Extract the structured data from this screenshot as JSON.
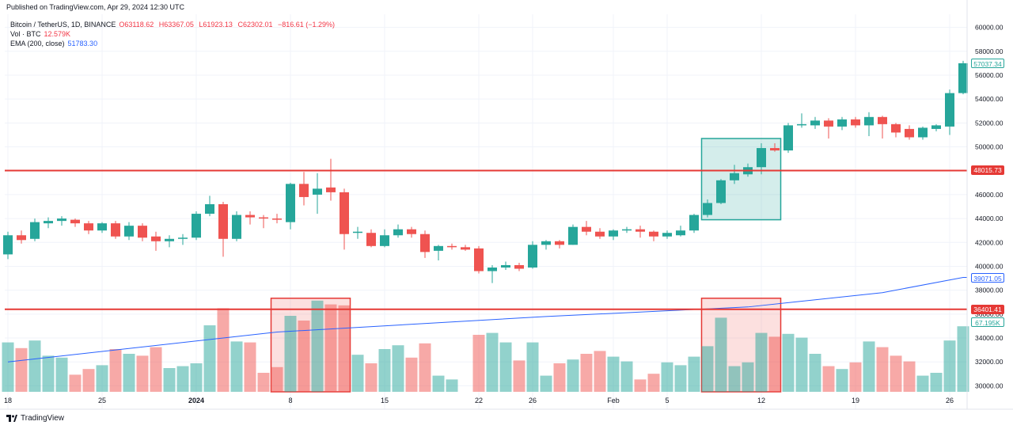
{
  "header": {
    "published": "Published on TradingView.com, Apr 29, 2024 12:30 UTC",
    "symbol": "Bitcoin / TetherUS, 1D, BINANCE",
    "ohlc": {
      "o_label": "O",
      "o": "63118.62",
      "h_label": "H",
      "h": "63367.05",
      "l_label": "L",
      "l": "61923.13",
      "c_label": "C",
      "c": "62302.01",
      "change": "−816.61 (−1.29%)"
    },
    "vol_label": "Vol · BTC",
    "vol_value": "12.579K",
    "ema_label": "EMA (200, close)",
    "ema_value": "51783.30"
  },
  "footer": {
    "brand": "TradingView"
  },
  "colors": {
    "up": "#26a69a",
    "down": "#ef5350",
    "ema": "#2962ff",
    "hline": "#e53935"
  },
  "chart_data": {
    "type": "candlestick",
    "title": "Bitcoin / TetherUS, 1D, BINANCE",
    "y_ticks": [
      "60000.00",
      "58000.00",
      "56000.00",
      "54000.00",
      "52000.00",
      "50000.00",
      "48000.00",
      "46000.00",
      "44000.00",
      "42000.00",
      "40000.00",
      "38000.00",
      "36000.00",
      "34000.00",
      "32000.00",
      "30000.00"
    ],
    "ylim": [
      29300,
      61100
    ],
    "x_ticks": [
      {
        "label": "18",
        "index": 0
      },
      {
        "label": "25",
        "index": 7
      },
      {
        "label": "2024",
        "index": 14
      },
      {
        "label": "8",
        "index": 21
      },
      {
        "label": "15",
        "index": 28
      },
      {
        "label": "22",
        "index": 35
      },
      {
        "label": "26",
        "index": 39
      },
      {
        "label": "Feb",
        "index": 45
      },
      {
        "label": "5",
        "index": 49
      },
      {
        "label": "12",
        "index": 56
      },
      {
        "label": "19",
        "index": 63
      },
      {
        "label": "26",
        "index": 70
      }
    ],
    "candles": [
      {
        "o": 41000,
        "h": 42900,
        "l": 40600,
        "c": 42600
      },
      {
        "o": 42600,
        "h": 43000,
        "l": 41900,
        "c": 42200
      },
      {
        "o": 42300,
        "h": 44000,
        "l": 42100,
        "c": 43700
      },
      {
        "o": 43600,
        "h": 44100,
        "l": 43200,
        "c": 43800
      },
      {
        "o": 43800,
        "h": 44200,
        "l": 43400,
        "c": 44000
      },
      {
        "o": 43900,
        "h": 44000,
        "l": 43300,
        "c": 43600
      },
      {
        "o": 43600,
        "h": 43800,
        "l": 42700,
        "c": 43000
      },
      {
        "o": 43000,
        "h": 43700,
        "l": 42800,
        "c": 43600
      },
      {
        "o": 43600,
        "h": 43800,
        "l": 42300,
        "c": 42500
      },
      {
        "o": 42500,
        "h": 43700,
        "l": 42200,
        "c": 43400
      },
      {
        "o": 43400,
        "h": 43600,
        "l": 42100,
        "c": 42400
      },
      {
        "o": 42500,
        "h": 42900,
        "l": 41300,
        "c": 42100
      },
      {
        "o": 42100,
        "h": 42600,
        "l": 41600,
        "c": 42300
      },
      {
        "o": 42300,
        "h": 42700,
        "l": 41800,
        "c": 42400
      },
      {
        "o": 42400,
        "h": 44600,
        "l": 42200,
        "c": 44400
      },
      {
        "o": 44400,
        "h": 45900,
        "l": 44200,
        "c": 45200
      },
      {
        "o": 45200,
        "h": 45400,
        "l": 40800,
        "c": 42300
      },
      {
        "o": 42300,
        "h": 44600,
        "l": 42100,
        "c": 44300
      },
      {
        "o": 44300,
        "h": 44600,
        "l": 43500,
        "c": 44100
      },
      {
        "o": 44100,
        "h": 44300,
        "l": 43200,
        "c": 44000
      },
      {
        "o": 44000,
        "h": 44400,
        "l": 43600,
        "c": 43900
      },
      {
        "o": 43700,
        "h": 47000,
        "l": 43100,
        "c": 46900
      },
      {
        "o": 46900,
        "h": 47900,
        "l": 45100,
        "c": 45800
      },
      {
        "o": 46000,
        "h": 47800,
        "l": 44400,
        "c": 46500
      },
      {
        "o": 46600,
        "h": 49000,
        "l": 45500,
        "c": 46200
      },
      {
        "o": 46200,
        "h": 46500,
        "l": 41400,
        "c": 42700
      },
      {
        "o": 42800,
        "h": 43300,
        "l": 42300,
        "c": 42900
      },
      {
        "o": 42800,
        "h": 43100,
        "l": 41600,
        "c": 41700
      },
      {
        "o": 41700,
        "h": 43100,
        "l": 41600,
        "c": 42600
      },
      {
        "o": 42600,
        "h": 43500,
        "l": 42400,
        "c": 43100
      },
      {
        "o": 43100,
        "h": 43300,
        "l": 42400,
        "c": 42700
      },
      {
        "o": 42700,
        "h": 43000,
        "l": 40700,
        "c": 41200
      },
      {
        "o": 41300,
        "h": 41800,
        "l": 40500,
        "c": 41700
      },
      {
        "o": 41700,
        "h": 41900,
        "l": 41400,
        "c": 41600
      },
      {
        "o": 41600,
        "h": 41800,
        "l": 41300,
        "c": 41400
      },
      {
        "o": 41500,
        "h": 41700,
        "l": 39400,
        "c": 39600
      },
      {
        "o": 39600,
        "h": 40100,
        "l": 38600,
        "c": 39900
      },
      {
        "o": 39900,
        "h": 40400,
        "l": 39700,
        "c": 40100
      },
      {
        "o": 40100,
        "h": 40300,
        "l": 39600,
        "c": 39800
      },
      {
        "o": 39900,
        "h": 42100,
        "l": 39800,
        "c": 41800
      },
      {
        "o": 41800,
        "h": 42200,
        "l": 41400,
        "c": 42100
      },
      {
        "o": 42100,
        "h": 42200,
        "l": 41500,
        "c": 41800
      },
      {
        "o": 41800,
        "h": 43500,
        "l": 41800,
        "c": 43300
      },
      {
        "o": 43300,
        "h": 43800,
        "l": 42600,
        "c": 42900
      },
      {
        "o": 42900,
        "h": 43200,
        "l": 42300,
        "c": 42500
      },
      {
        "o": 42500,
        "h": 43100,
        "l": 42200,
        "c": 43000
      },
      {
        "o": 43000,
        "h": 43300,
        "l": 42800,
        "c": 43100
      },
      {
        "o": 43100,
        "h": 43400,
        "l": 42400,
        "c": 42900
      },
      {
        "o": 42900,
        "h": 43000,
        "l": 42100,
        "c": 42500
      },
      {
        "o": 42500,
        "h": 43000,
        "l": 42300,
        "c": 42800
      },
      {
        "o": 42600,
        "h": 43400,
        "l": 42500,
        "c": 43000
      },
      {
        "o": 43000,
        "h": 44400,
        "l": 42800,
        "c": 44300
      },
      {
        "o": 44300,
        "h": 45600,
        "l": 44100,
        "c": 45300
      },
      {
        "o": 45300,
        "h": 47300,
        "l": 45200,
        "c": 47200
      },
      {
        "o": 47200,
        "h": 48500,
        "l": 46900,
        "c": 47800
      },
      {
        "o": 47700,
        "h": 48600,
        "l": 47500,
        "c": 48300
      },
      {
        "o": 48300,
        "h": 50300,
        "l": 47700,
        "c": 49900
      },
      {
        "o": 49900,
        "h": 50300,
        "l": 49600,
        "c": 49700
      },
      {
        "o": 49700,
        "h": 52000,
        "l": 49500,
        "c": 51800
      },
      {
        "o": 51800,
        "h": 52800,
        "l": 51600,
        "c": 51900
      },
      {
        "o": 51800,
        "h": 52500,
        "l": 51500,
        "c": 52200
      },
      {
        "o": 52200,
        "h": 52400,
        "l": 50700,
        "c": 51700
      },
      {
        "o": 51700,
        "h": 52500,
        "l": 51400,
        "c": 52300
      },
      {
        "o": 52300,
        "h": 52500,
        "l": 51600,
        "c": 51800
      },
      {
        "o": 51800,
        "h": 52900,
        "l": 50900,
        "c": 52500
      },
      {
        "o": 52500,
        "h": 52600,
        "l": 50700,
        "c": 51900
      },
      {
        "o": 51900,
        "h": 52000,
        "l": 50800,
        "c": 51200
      },
      {
        "o": 51500,
        "h": 51800,
        "l": 50600,
        "c": 50800
      },
      {
        "o": 50800,
        "h": 51700,
        "l": 50600,
        "c": 51600
      },
      {
        "o": 51500,
        "h": 51900,
        "l": 51300,
        "c": 51800
      },
      {
        "o": 51700,
        "h": 54800,
        "l": 51000,
        "c": 54500
      },
      {
        "o": 54500,
        "h": 57200,
        "l": 54400,
        "c": 57000
      }
    ],
    "volume_scale_top": 80,
    "volumes": [
      {
        "v": 52,
        "up": true
      },
      {
        "v": 46,
        "up": false
      },
      {
        "v": 54,
        "up": true
      },
      {
        "v": 38,
        "up": true
      },
      {
        "v": 36,
        "up": true
      },
      {
        "v": 18,
        "up": false
      },
      {
        "v": 24,
        "up": false
      },
      {
        "v": 28,
        "up": true
      },
      {
        "v": 45,
        "up": false
      },
      {
        "v": 40,
        "up": true
      },
      {
        "v": 38,
        "up": false
      },
      {
        "v": 47,
        "up": false
      },
      {
        "v": 25,
        "up": true
      },
      {
        "v": 27,
        "up": true
      },
      {
        "v": 30,
        "up": true
      },
      {
        "v": 70,
        "up": true
      },
      {
        "v": 88,
        "up": false
      },
      {
        "v": 53,
        "up": true
      },
      {
        "v": 52,
        "up": false
      },
      {
        "v": 20,
        "up": false
      },
      {
        "v": 26,
        "up": false
      },
      {
        "v": 80,
        "up": true
      },
      {
        "v": 75,
        "up": false
      },
      {
        "v": 96,
        "up": true
      },
      {
        "v": 92,
        "up": false
      },
      {
        "v": 91,
        "up": false
      },
      {
        "v": 39,
        "up": true
      },
      {
        "v": 30,
        "up": false
      },
      {
        "v": 45,
        "up": true
      },
      {
        "v": 49,
        "up": true
      },
      {
        "v": 36,
        "up": false
      },
      {
        "v": 51,
        "up": false
      },
      {
        "v": 17,
        "up": true
      },
      {
        "v": 13,
        "up": true
      },
      {
        "v": 0,
        "up": true
      },
      {
        "v": 60,
        "up": false
      },
      {
        "v": 62,
        "up": true
      },
      {
        "v": 52,
        "up": true
      },
      {
        "v": 33,
        "up": false
      },
      {
        "v": 52,
        "up": true
      },
      {
        "v": 17,
        "up": true
      },
      {
        "v": 30,
        "up": false
      },
      {
        "v": 34,
        "up": true
      },
      {
        "v": 40,
        "up": false
      },
      {
        "v": 43,
        "up": false
      },
      {
        "v": 37,
        "up": true
      },
      {
        "v": 32,
        "up": true
      },
      {
        "v": 13,
        "up": false
      },
      {
        "v": 19,
        "up": false
      },
      {
        "v": 31,
        "up": true
      },
      {
        "v": 28,
        "up": true
      },
      {
        "v": 37,
        "up": true
      },
      {
        "v": 48,
        "up": true
      },
      {
        "v": 78,
        "up": true
      },
      {
        "v": 27,
        "up": true
      },
      {
        "v": 31,
        "up": true
      },
      {
        "v": 62,
        "up": true
      },
      {
        "v": 58,
        "up": false
      },
      {
        "v": 61,
        "up": true
      },
      {
        "v": 57,
        "up": true
      },
      {
        "v": 40,
        "up": true
      },
      {
        "v": 27,
        "up": false
      },
      {
        "v": 24,
        "up": true
      },
      {
        "v": 31,
        "up": false
      },
      {
        "v": 53,
        "up": true
      },
      {
        "v": 47,
        "up": false
      },
      {
        "v": 38,
        "up": false
      },
      {
        "v": 32,
        "up": false
      },
      {
        "v": 17,
        "up": true
      },
      {
        "v": 20,
        "up": true
      },
      {
        "v": 54,
        "up": true
      },
      {
        "v": 69,
        "up": true
      }
    ],
    "ema200": [
      {
        "index": 0,
        "y": 32000
      },
      {
        "index": 20,
        "y": 34500
      },
      {
        "index": 40,
        "y": 35800
      },
      {
        "index": 55,
        "y": 36600
      },
      {
        "index": 65,
        "y": 37800
      },
      {
        "index": 71,
        "y": 39071
      }
    ],
    "hlines": [
      {
        "y": 48015.73,
        "label": "48015.73"
      },
      {
        "y": 36401.41,
        "label": "36401.41"
      }
    ],
    "price_tags": {
      "last": "57037.34",
      "ema": "39071.05",
      "volume": "67.195K"
    },
    "zones": [
      {
        "kind": "price",
        "from": 52,
        "to": 57,
        "y1": 43900,
        "y2": 50700,
        "color": "green"
      },
      {
        "kind": "volume",
        "from": 20,
        "to": 25,
        "color": "red"
      },
      {
        "kind": "volume",
        "from": 52,
        "to": 57,
        "color": "red"
      }
    ]
  }
}
